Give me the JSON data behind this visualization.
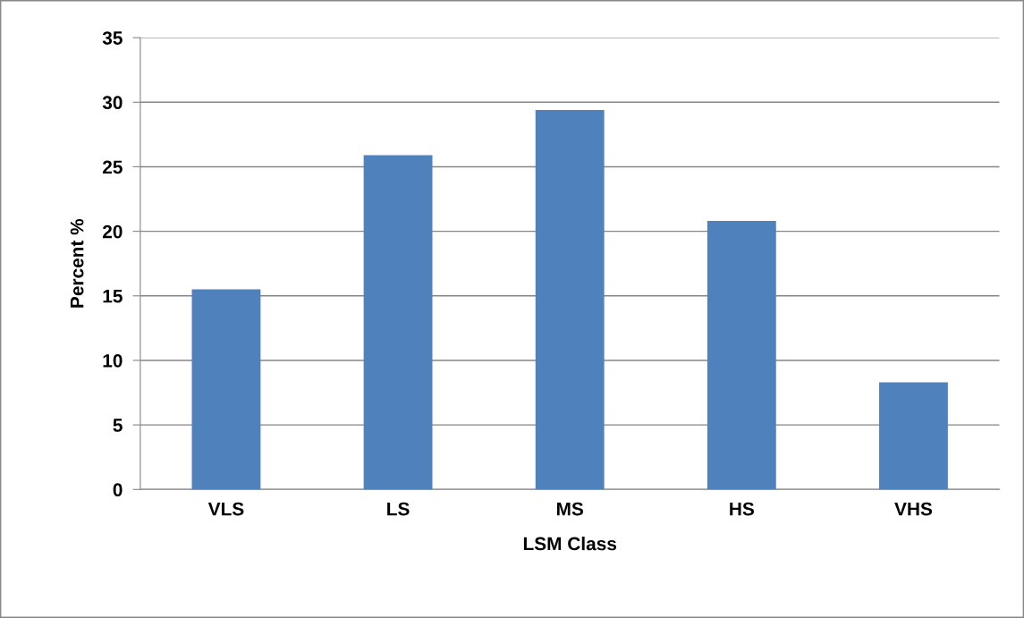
{
  "chart_data": {
    "type": "bar",
    "xlabel": "LSM Class",
    "ylabel": "Percent %",
    "categories": [
      "VLS",
      "LS",
      "MS",
      "HS",
      "VHS"
    ],
    "values": [
      15.5,
      25.9,
      29.4,
      20.8,
      8.3
    ],
    "color": "#4f81bd",
    "ylim": [
      0,
      35
    ],
    "yticks": [
      0,
      5,
      10,
      15,
      20,
      25,
      30,
      35
    ],
    "grid": "y",
    "legend": false
  }
}
